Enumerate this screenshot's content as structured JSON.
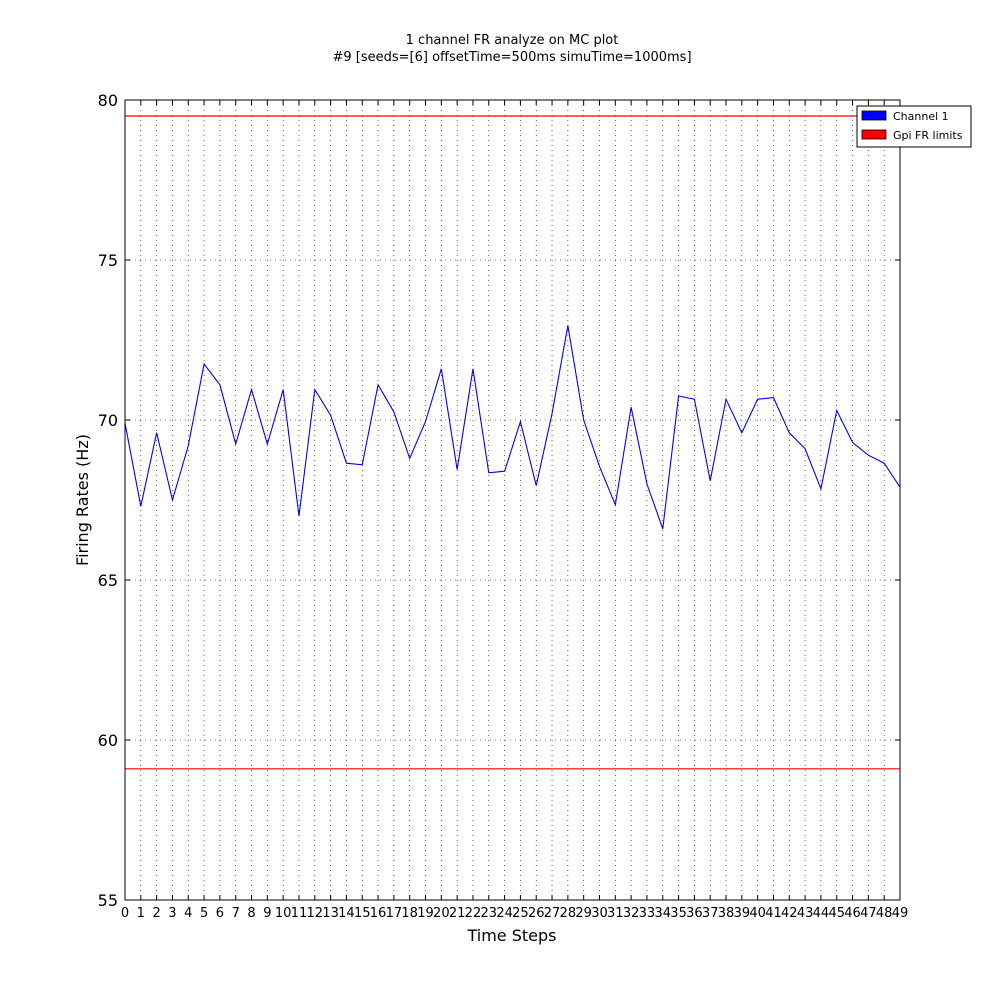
{
  "chart_data": {
    "type": "line",
    "title": "1 channel FR analyze on MC plot",
    "subtitle": "#9 [seeds=[6] offsetTime=500ms simuTime=1000ms]",
    "xlabel": "Time Steps",
    "ylabel": "Firing Rates (Hz)",
    "xlim": [
      0,
      49
    ],
    "ylim": [
      55,
      80
    ],
    "yticks": [
      55,
      60,
      65,
      70,
      75,
      80
    ],
    "xticks": [
      0,
      1,
      2,
      3,
      4,
      5,
      6,
      7,
      8,
      9,
      10,
      11,
      12,
      13,
      14,
      15,
      16,
      17,
      18,
      19,
      20,
      21,
      22,
      23,
      24,
      25,
      26,
      27,
      28,
      29,
      30,
      31,
      32,
      33,
      34,
      35,
      36,
      37,
      38,
      39,
      40,
      41,
      42,
      43,
      44,
      45,
      46,
      47,
      48,
      49
    ],
    "grid": true,
    "legend_position": "top-right",
    "series": [
      {
        "name": "Channel 1",
        "color": "#0000ff",
        "values": [
          69.9,
          67.3,
          69.6,
          67.5,
          69.2,
          71.75,
          71.1,
          69.25,
          70.95,
          69.25,
          70.95,
          67.0,
          70.95,
          70.15,
          68.65,
          68.6,
          71.1,
          70.25,
          68.8,
          69.95,
          71.6,
          68.45,
          71.6,
          68.35,
          68.4,
          69.95,
          67.95,
          70.2,
          72.95,
          70.0,
          68.55,
          67.35,
          70.4,
          68.0,
          66.6,
          70.75,
          70.65,
          68.1,
          70.65,
          69.6,
          70.65,
          70.7,
          69.6,
          69.1,
          67.85,
          70.3,
          69.3,
          68.9,
          68.65,
          67.9
        ]
      }
    ],
    "limits": {
      "name": "Gpi FR limits",
      "color": "#ff0000",
      "values": [
        59.1,
        79.5
      ]
    }
  }
}
